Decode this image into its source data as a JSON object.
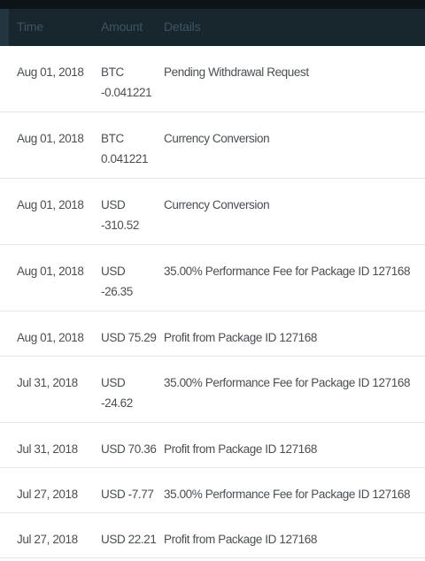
{
  "table": {
    "headers": {
      "time": "Time",
      "amount": "Amount",
      "details": "Details"
    },
    "rows": [
      {
        "time": "Aug 01, 2018",
        "amount_lines": [
          "BTC",
          "-0.041221"
        ],
        "details": "Pending Withdrawal Request"
      },
      {
        "time": "Aug 01, 2018",
        "amount_lines": [
          "BTC",
          "0.041221"
        ],
        "details": "Currency Conversion"
      },
      {
        "time": "Aug 01, 2018",
        "amount_lines": [
          "USD",
          "-310.52"
        ],
        "details": "Currency Conversion"
      },
      {
        "time": "Aug 01, 2018",
        "amount_lines": [
          "USD",
          "-26.35"
        ],
        "details": "35.00% Performance Fee for Package ID 127168"
      },
      {
        "time": "Aug 01, 2018",
        "amount_lines": [
          "USD 75.29"
        ],
        "details": "Profit from Package ID 127168"
      },
      {
        "time": "Jul 31, 2018",
        "amount_lines": [
          "USD",
          "-24.62"
        ],
        "details": "35.00% Performance Fee for Package ID 127168"
      },
      {
        "time": "Jul 31, 2018",
        "amount_lines": [
          "USD 70.36"
        ],
        "details": "Profit from Package ID 127168"
      },
      {
        "time": "Jul 27, 2018",
        "amount_lines": [
          "USD -7.77"
        ],
        "details": "35.00% Performance Fee for Package ID 127168"
      },
      {
        "time": "Jul 27, 2018",
        "amount_lines": [
          "USD 22.21"
        ],
        "details": "Profit from Package ID 127168"
      }
    ]
  },
  "colors": {
    "header_background": "#18262e",
    "header_text": "#3d5562",
    "row_text": "#4a4f54",
    "row_divider": "#e6e9eb"
  }
}
